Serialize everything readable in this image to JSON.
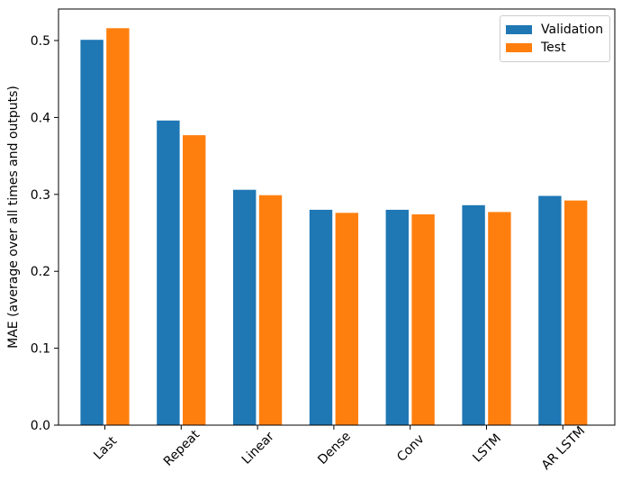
{
  "chart_data": {
    "type": "bar",
    "title": "",
    "xlabel": "",
    "ylabel": "MAE (average over all times and outputs)",
    "categories": [
      "Last",
      "Repeat",
      "Linear",
      "Dense",
      "Conv",
      "LSTM",
      "AR LSTM"
    ],
    "series": [
      {
        "name": "Validation",
        "color": "#1f77b4",
        "values": [
          0.501,
          0.396,
          0.306,
          0.28,
          0.28,
          0.286,
          0.298
        ]
      },
      {
        "name": "Test",
        "color": "#ff7f0e",
        "values": [
          0.516,
          0.377,
          0.299,
          0.276,
          0.274,
          0.277,
          0.292
        ]
      }
    ],
    "ylim": [
      0.0,
      0.541
    ],
    "ytick_labels": [
      "0.0",
      "0.1",
      "0.2",
      "0.3",
      "0.4",
      "0.5"
    ],
    "ytick_values": [
      0.0,
      0.1,
      0.2,
      0.3,
      0.4,
      0.5
    ],
    "xtick_rotation_deg": 45,
    "bar_width_units": 0.3,
    "bar_offset_units": 0.17,
    "grid": false,
    "legend_position": "upper right",
    "axis_color": "#000000",
    "text_color": "#000000",
    "background_color": "#ffffff"
  }
}
